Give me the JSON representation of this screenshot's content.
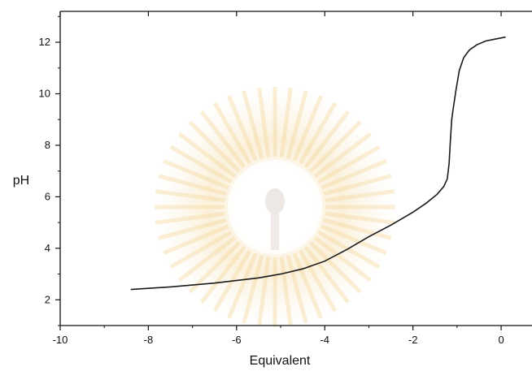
{
  "chart_data": {
    "type": "line",
    "title": "",
    "xlabel": "Equivalent",
    "ylabel": "pH",
    "xlim": [
      -10,
      0.7
    ],
    "ylim": [
      1,
      13.2
    ],
    "grid": false,
    "legend": "none",
    "x_ticks": [
      -10,
      -8,
      -6,
      -4,
      -2,
      0
    ],
    "y_ticks": [
      2,
      4,
      6,
      8,
      10,
      12
    ],
    "line_color": "#1a1a1a",
    "series": [
      {
        "x": [
          -8.4,
          -7.5,
          -6.5,
          -5.5,
          -5.0,
          -4.5,
          -4.0,
          -3.5,
          -3.0,
          -2.5,
          -2.0,
          -1.7,
          -1.45,
          -1.3,
          -1.22,
          -1.18,
          -1.15,
          -1.12,
          -1.08,
          -1.02,
          -0.95,
          -0.85,
          -0.72,
          -0.55,
          -0.35,
          -0.15,
          0.1
        ],
        "y": [
          2.4,
          2.5,
          2.65,
          2.85,
          3.0,
          3.2,
          3.5,
          3.95,
          4.45,
          4.9,
          5.4,
          5.75,
          6.1,
          6.4,
          6.7,
          7.3,
          8.2,
          9.0,
          9.5,
          10.2,
          10.9,
          11.4,
          11.7,
          11.9,
          12.05,
          12.12,
          12.2
        ]
      }
    ]
  }
}
